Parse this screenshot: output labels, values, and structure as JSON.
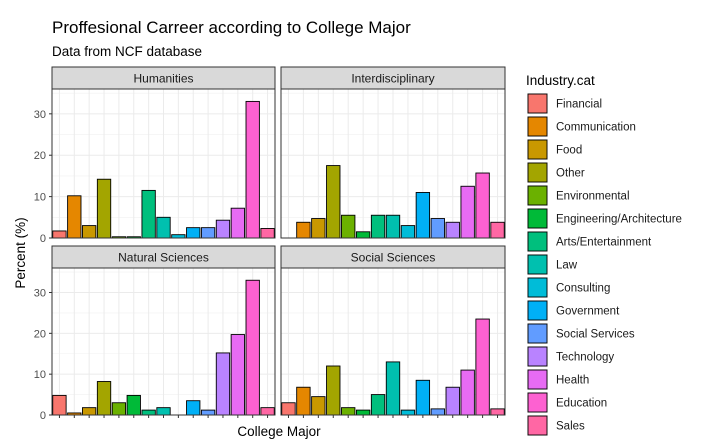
{
  "chart_data": {
    "type": "bar",
    "title": "Proffesional Carreer according to College Major",
    "subtitle": "Data from NCF database",
    "xlabel": "College Major",
    "ylabel": "Percent (%)",
    "ylim": [
      0,
      36
    ],
    "y_ticks": [
      0,
      10,
      20,
      30
    ],
    "grid": true,
    "legend": {
      "title": "Industry.cat",
      "position": "right"
    },
    "categories": [
      "Financial",
      "Communication",
      "Food",
      "Other",
      "Environmental",
      "Engineering/Architecture",
      "Arts/Entertainment",
      "Law",
      "Consulting",
      "Government",
      "Social Services",
      "Technology",
      "Health",
      "Education",
      "Sales"
    ],
    "colors": [
      "#F8766D",
      "#E58700",
      "#C99800",
      "#A3A500",
      "#6BB100",
      "#00BA38",
      "#00BF7D",
      "#00C0AF",
      "#00BCD8",
      "#00B0F6",
      "#619CFF",
      "#B983FF",
      "#E76BF3",
      "#FD61D1",
      "#FF67A4"
    ],
    "panels": [
      {
        "name": "Humanities",
        "values": [
          1.7,
          10.2,
          3.0,
          14.2,
          0.3,
          0.3,
          11.5,
          5.0,
          0.8,
          2.5,
          2.5,
          4.3,
          7.2,
          33.0,
          2.3
        ]
      },
      {
        "name": "Interdisciplinary",
        "values": [
          0,
          3.8,
          4.7,
          17.5,
          5.5,
          1.5,
          5.5,
          5.5,
          3.0,
          11.0,
          4.7,
          3.8,
          12.5,
          15.7,
          3.8
        ]
      },
      {
        "name": "Natural Sciences",
        "values": [
          4.8,
          0.5,
          1.8,
          8.2,
          3.0,
          4.8,
          1.2,
          1.8,
          0,
          3.5,
          1.2,
          15.2,
          19.7,
          33.0,
          1.8
        ]
      },
      {
        "name": "Social Sciences",
        "values": [
          3.0,
          6.8,
          4.5,
          12.0,
          1.8,
          1.2,
          5.0,
          13.0,
          1.2,
          8.5,
          1.5,
          6.8,
          11.0,
          23.5,
          1.5
        ]
      }
    ]
  }
}
